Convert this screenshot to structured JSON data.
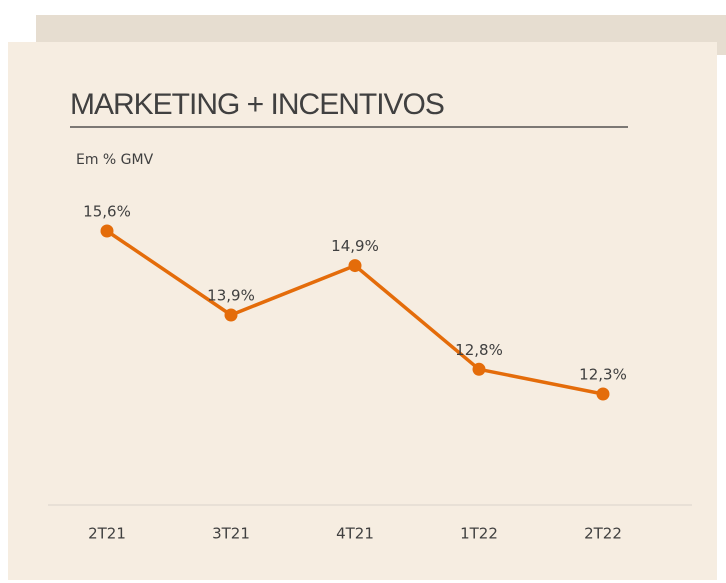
{
  "chart_data": {
    "type": "line",
    "title": "MARKETING + INCENTIVOS",
    "subtitle": "Em % GMV",
    "categories": [
      "2T21",
      "3T21",
      "4T21",
      "1T22",
      "2T22"
    ],
    "values": [
      15.6,
      13.9,
      14.9,
      12.8,
      12.3
    ],
    "value_labels": [
      "15,6%",
      "13,9%",
      "14,9%",
      "12,8%",
      "12,3%"
    ],
    "color": "#e46c0a"
  }
}
